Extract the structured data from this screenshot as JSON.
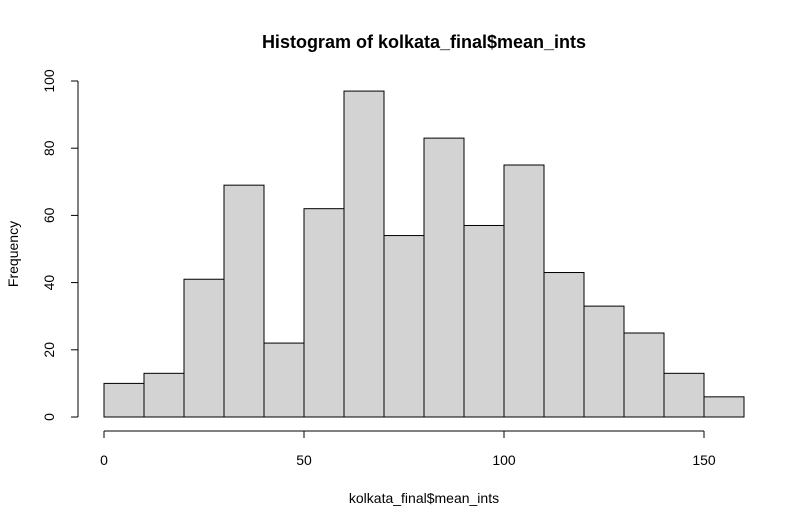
{
  "chart_data": {
    "type": "bar",
    "title": "Histogram of kolkata_final$mean_ints",
    "xlabel": "kolkata_final$mean_ints",
    "ylabel": "Frequency",
    "bin_edges": [
      0,
      10,
      20,
      30,
      40,
      50,
      60,
      70,
      80,
      90,
      100,
      110,
      120,
      130,
      140,
      150,
      160
    ],
    "values": [
      10,
      13,
      41,
      69,
      22,
      62,
      97,
      54,
      83,
      57,
      75,
      43,
      33,
      25,
      13,
      6
    ],
    "xlim": [
      0,
      160
    ],
    "ylim": [
      0,
      100
    ],
    "x_ticks": [
      0,
      50,
      100,
      150
    ],
    "y_ticks": [
      0,
      20,
      40,
      60,
      80,
      100
    ],
    "grid": false,
    "colors": {
      "bar_fill": "#d3d3d3",
      "bar_stroke": "#000000"
    }
  }
}
